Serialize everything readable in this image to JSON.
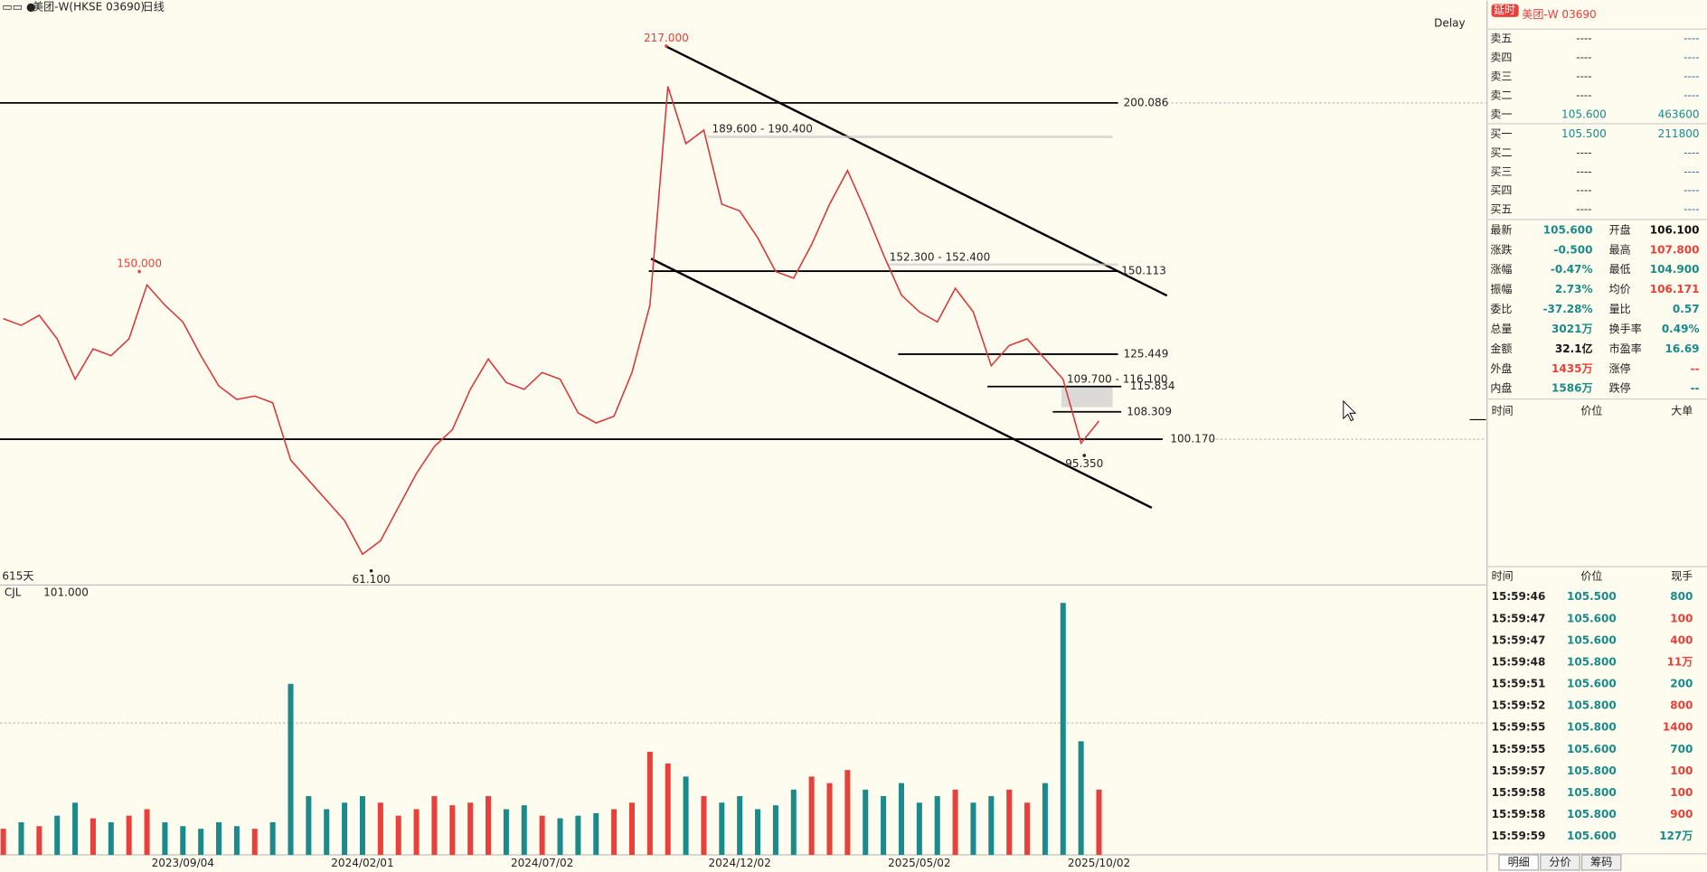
{
  "header": {
    "title": "美团-W(HKSE 03690)",
    "period": "日线",
    "status": "Delay"
  },
  "chart_data": [
    {
      "type": "line",
      "categories": [
        null,
        null,
        null,
        null,
        null,
        null,
        null,
        null,
        null,
        null,
        "2023/09/04",
        null,
        null,
        null,
        null,
        null,
        null,
        null,
        null,
        null,
        "2024/02/01",
        null,
        null,
        null,
        null,
        null,
        null,
        null,
        null,
        null,
        "2024/07/02",
        null,
        null,
        null,
        null,
        null,
        null,
        null,
        null,
        null,
        null,
        "2024/12/02",
        null,
        null,
        null,
        null,
        null,
        null,
        null,
        null,
        null,
        "2025/05/02",
        null,
        null,
        null,
        null,
        null,
        null,
        null,
        null,
        null,
        "2025/10/02"
      ],
      "values": [
        136,
        134,
        137,
        130,
        118,
        127,
        125,
        130,
        146,
        140,
        135,
        125,
        116,
        112,
        113,
        111,
        94,
        88,
        82,
        76,
        66,
        70,
        80,
        90,
        98,
        103,
        115,
        124,
        117,
        115,
        120,
        118,
        108,
        105,
        107,
        120,
        140,
        205,
        188,
        192,
        170,
        168,
        160,
        150,
        148,
        158,
        170,
        180,
        168,
        155,
        143,
        138,
        135,
        145,
        138,
        122,
        128,
        130,
        124,
        118,
        99,
        105.6
      ],
      "color": "#d9383a",
      "ylim": [
        56.85,
        225.9
      ],
      "span_label": "615天",
      "levels": [
        200.086,
        150.113,
        125.449,
        115.834,
        {
          "value": 100.17,
          "label": "100.170"
        },
        108.309
      ],
      "zones": [
        {
          "low": 189.6,
          "high": 190.4,
          "label": "189.600 - 190.400"
        },
        {
          "low": 152.3,
          "high": 152.4,
          "label": "152.300 - 152.400"
        },
        {
          "low": 109.7,
          "high": 116.1,
          "label": "109.700 - 116.100"
        }
      ],
      "extremes": [
        {
          "value": 217,
          "label": "217.000"
        },
        {
          "value": 150,
          "label": "150.000"
        },
        {
          "value": 61.1,
          "label": "61.100"
        },
        {
          "value": 95.35,
          "label": "95.350"
        }
      ]
    },
    {
      "type": "bar",
      "indicator": "CJL",
      "reading": {
        "value": 101,
        "label": "101.000"
      },
      "values": [
        20,
        25,
        22,
        30,
        40,
        28,
        25,
        30,
        35,
        25,
        22,
        20,
        25,
        22,
        20,
        25,
        131,
        45,
        35,
        40,
        45,
        40,
        30,
        35,
        45,
        38,
        40,
        45,
        35,
        38,
        30,
        28,
        30,
        32,
        35,
        40,
        79,
        70,
        60,
        45,
        40,
        45,
        35,
        38,
        50,
        60,
        55,
        65,
        50,
        45,
        55,
        40,
        45,
        50,
        40,
        45,
        50,
        40,
        55,
        193,
        87,
        50
      ],
      "ylim": [
        0,
        200
      ],
      "up_color": "#e8403a",
      "down_color": "#1a8a8a"
    }
  ],
  "quote": {
    "badge": "延时",
    "name": "美团-W 03690",
    "book": [
      {
        "side": "卖五",
        "price": "----",
        "volume": "----"
      },
      {
        "side": "卖四",
        "price": "----",
        "volume": "----"
      },
      {
        "side": "卖三",
        "price": "----",
        "volume": "----"
      },
      {
        "side": "卖二",
        "price": "----",
        "volume": "----"
      },
      {
        "side": "卖一",
        "price": "105.600",
        "volume": "463600"
      },
      {
        "side": "买一",
        "price": "105.500",
        "volume": "211800"
      },
      {
        "side": "买二",
        "price": "----",
        "volume": "----"
      },
      {
        "side": "买三",
        "price": "----",
        "volume": "----"
      },
      {
        "side": "买四",
        "price": "----",
        "volume": "----"
      },
      {
        "side": "买五",
        "price": "----",
        "volume": "----"
      }
    ],
    "stats": [
      {
        "label": "最新",
        "value": "105.600",
        "color": "#1a8a8a"
      },
      {
        "label": "开盘",
        "value": "106.100",
        "color": "#111111"
      },
      {
        "label": "涨跌",
        "value": "-0.500",
        "color": "#1a8a8a"
      },
      {
        "label": "最高",
        "value": "107.800",
        "color": "#e8403a"
      },
      {
        "label": "涨幅",
        "value": "-0.47%",
        "color": "#1a8a8a"
      },
      {
        "label": "最低",
        "value": "104.900",
        "color": "#1a8a8a"
      },
      {
        "label": "振幅",
        "value": "2.73%",
        "color": "#1a8a8a"
      },
      {
        "label": "均价",
        "value": "106.171",
        "color": "#e8403a"
      },
      {
        "label": "委比",
        "value": "-37.28%",
        "color": "#1a8a8a"
      },
      {
        "label": "量比",
        "value": "0.57",
        "color": "#1a8a8a"
      },
      {
        "label": "总量",
        "value": "3021万",
        "color": "#1a8a8a"
      },
      {
        "label": "换手率",
        "value": "0.49%",
        "color": "#1a8a8a"
      },
      {
        "label": "金额",
        "value": "32.1亿",
        "color": "#111111"
      },
      {
        "label": "市盈率",
        "value": "16.69",
        "color": "#1a8a8a"
      },
      {
        "label": "外盘",
        "value": "1435万",
        "color": "#e8403a"
      },
      {
        "label": "涨停",
        "value": "--",
        "color": "#e8403a"
      },
      {
        "label": "内盘",
        "value": "1586万",
        "color": "#1a8a8a"
      },
      {
        "label": "跌停",
        "value": "--",
        "color": "#1a8a8a"
      }
    ],
    "big_orders": {
      "columns": [
        "时间",
        "价位",
        "大单"
      ]
    },
    "trades": {
      "columns": [
        "时间",
        "价位",
        "现手"
      ],
      "rows": [
        {
          "time": "15:59:46",
          "price": "105.500",
          "volume": "800",
          "color": "#1a8a8a"
        },
        {
          "time": "15:59:47",
          "price": "105.600",
          "volume": "100",
          "color": "#e8403a"
        },
        {
          "time": "15:59:47",
          "price": "105.600",
          "volume": "400",
          "color": "#e8403a"
        },
        {
          "time": "15:59:48",
          "price": "105.800",
          "volume": "11万",
          "color": "#e8403a"
        },
        {
          "time": "15:59:51",
          "price": "105.600",
          "volume": "200",
          "color": "#1a8a8a"
        },
        {
          "time": "15:59:52",
          "price": "105.800",
          "volume": "800",
          "color": "#e8403a"
        },
        {
          "time": "15:59:55",
          "price": "105.800",
          "volume": "1400",
          "color": "#e8403a"
        },
        {
          "time": "15:59:55",
          "price": "105.600",
          "volume": "700",
          "color": "#1a8a8a"
        },
        {
          "time": "15:59:57",
          "price": "105.800",
          "volume": "100",
          "color": "#e8403a"
        },
        {
          "time": "15:59:58",
          "price": "105.800",
          "volume": "100",
          "color": "#e8403a"
        },
        {
          "time": "15:59:58",
          "price": "105.800",
          "volume": "900",
          "color": "#e8403a"
        },
        {
          "time": "15:59:59",
          "price": "105.600",
          "volume": "127万",
          "color": "#1a8a8a"
        }
      ]
    },
    "tabs": [
      "明细",
      "分价",
      "筹码"
    ]
  }
}
